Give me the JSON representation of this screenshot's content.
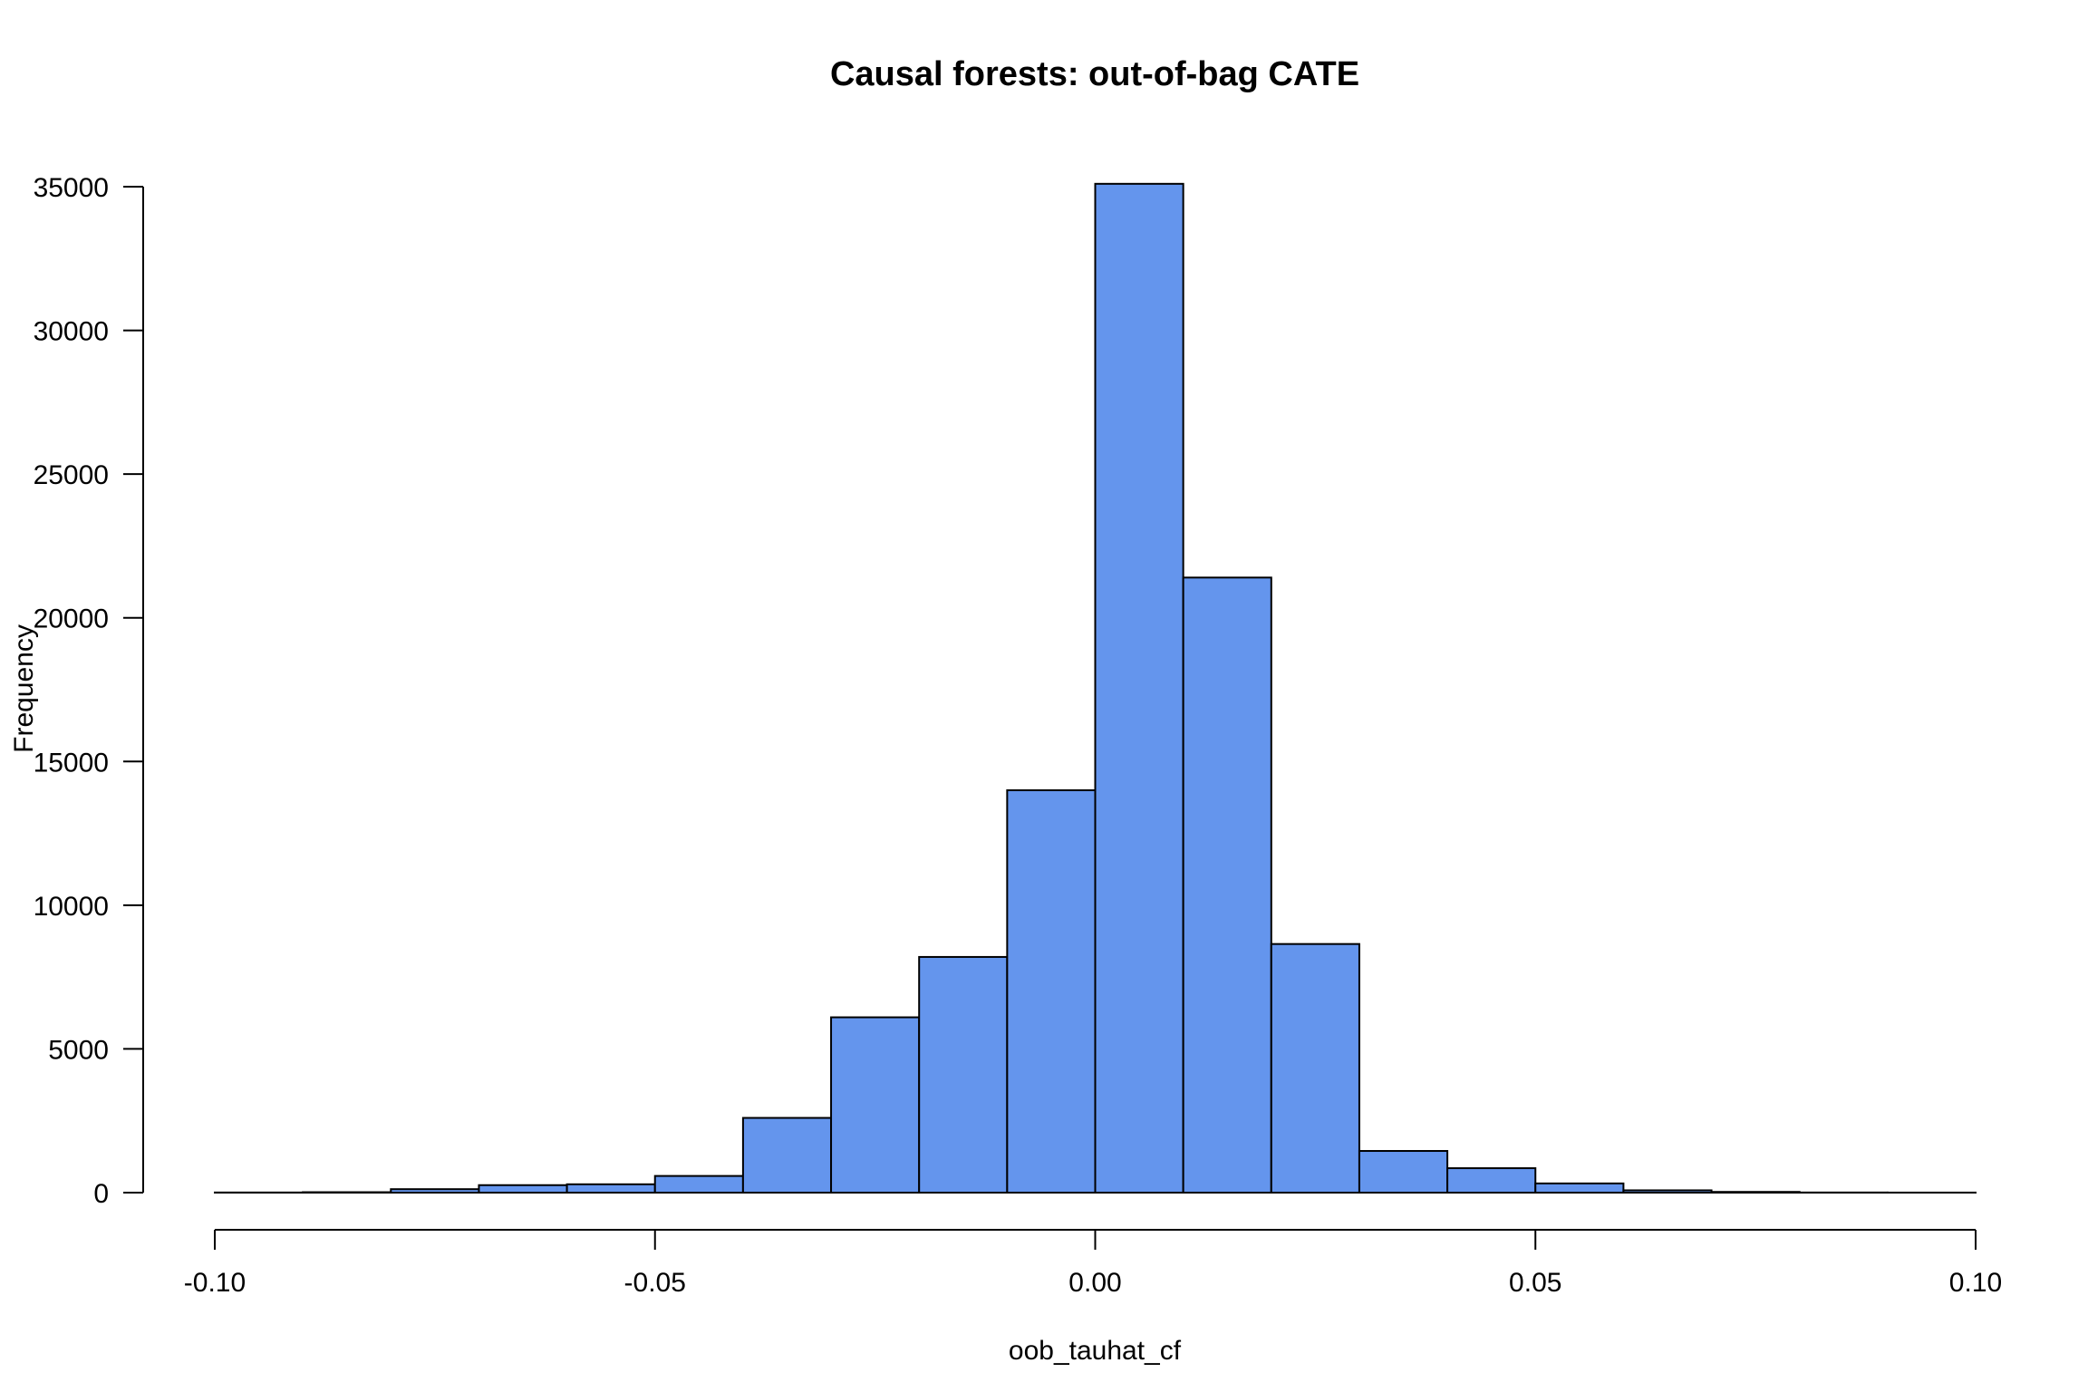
{
  "chart_data": {
    "type": "bar",
    "title": "Causal forests: out-of-bag CATE",
    "xlabel": "oob_tauhat_cf",
    "ylabel": "Frequency",
    "xlim": [
      -0.1,
      0.1
    ],
    "ylim": [
      0,
      35000
    ],
    "x_ticks": [
      -0.1,
      -0.05,
      0.0,
      0.05,
      0.1
    ],
    "x_tick_labels": [
      "-0.10",
      "-0.05",
      "0.00",
      "0.05",
      "0.10"
    ],
    "y_ticks": [
      0,
      5000,
      10000,
      15000,
      20000,
      25000,
      30000,
      35000
    ],
    "y_tick_labels": [
      "0",
      "5000",
      "10000",
      "15000",
      "20000",
      "25000",
      "30000",
      "35000"
    ],
    "bins": [
      {
        "start": -0.1,
        "end": -0.09,
        "count": 5
      },
      {
        "start": -0.09,
        "end": -0.08,
        "count": 15
      },
      {
        "start": -0.08,
        "end": -0.07,
        "count": 120
      },
      {
        "start": -0.07,
        "end": -0.06,
        "count": 260
      },
      {
        "start": -0.06,
        "end": -0.05,
        "count": 290
      },
      {
        "start": -0.05,
        "end": -0.04,
        "count": 580
      },
      {
        "start": -0.04,
        "end": -0.03,
        "count": 2600
      },
      {
        "start": -0.03,
        "end": -0.02,
        "count": 6100
      },
      {
        "start": -0.02,
        "end": -0.01,
        "count": 8200
      },
      {
        "start": -0.01,
        "end": 0.0,
        "count": 14000
      },
      {
        "start": 0.0,
        "end": 0.01,
        "count": 35100
      },
      {
        "start": 0.01,
        "end": 0.02,
        "count": 21400
      },
      {
        "start": 0.02,
        "end": 0.03,
        "count": 8650
      },
      {
        "start": 0.03,
        "end": 0.04,
        "count": 1450
      },
      {
        "start": 0.04,
        "end": 0.05,
        "count": 850
      },
      {
        "start": 0.05,
        "end": 0.06,
        "count": 320
      },
      {
        "start": 0.06,
        "end": 0.07,
        "count": 80
      },
      {
        "start": 0.07,
        "end": 0.08,
        "count": 25
      },
      {
        "start": 0.08,
        "end": 0.09,
        "count": 5
      },
      {
        "start": 0.09,
        "end": 0.1,
        "count": 2
      }
    ],
    "bar_color": "#6495ED",
    "bar_border_color": "#000000",
    "grid": false,
    "legend": "none"
  }
}
